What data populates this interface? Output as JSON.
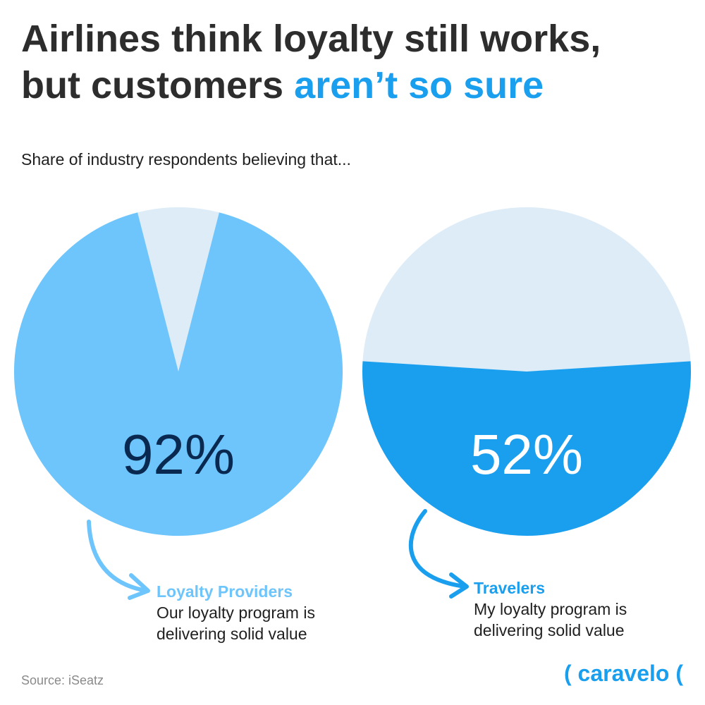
{
  "header": {
    "title_part1": "Airlines think loyalty still works,",
    "title_part2": "but customers ",
    "title_highlight": "aren’t so sure",
    "subtitle": "Share of industry respondents believing that..."
  },
  "chart_data": [
    {
      "type": "pie",
      "value": 92,
      "label": "92%",
      "group": "Loyalty Providers",
      "statement": "Our loyalty program is delivering solid value",
      "colors": {
        "filled": "#6ec5fb",
        "rest": "#ddecf7",
        "label": "#0a2950"
      }
    },
    {
      "type": "pie",
      "value": 52,
      "label": "52%",
      "group": "Travelers",
      "statement": "My loyalty program is delivering solid value",
      "colors": {
        "filled": "#1a9fef",
        "rest": "#ddecf7",
        "label": "#ffffff"
      }
    }
  ],
  "footer": {
    "source": "Source: iSeatz",
    "brand": "( caravelo ("
  }
}
